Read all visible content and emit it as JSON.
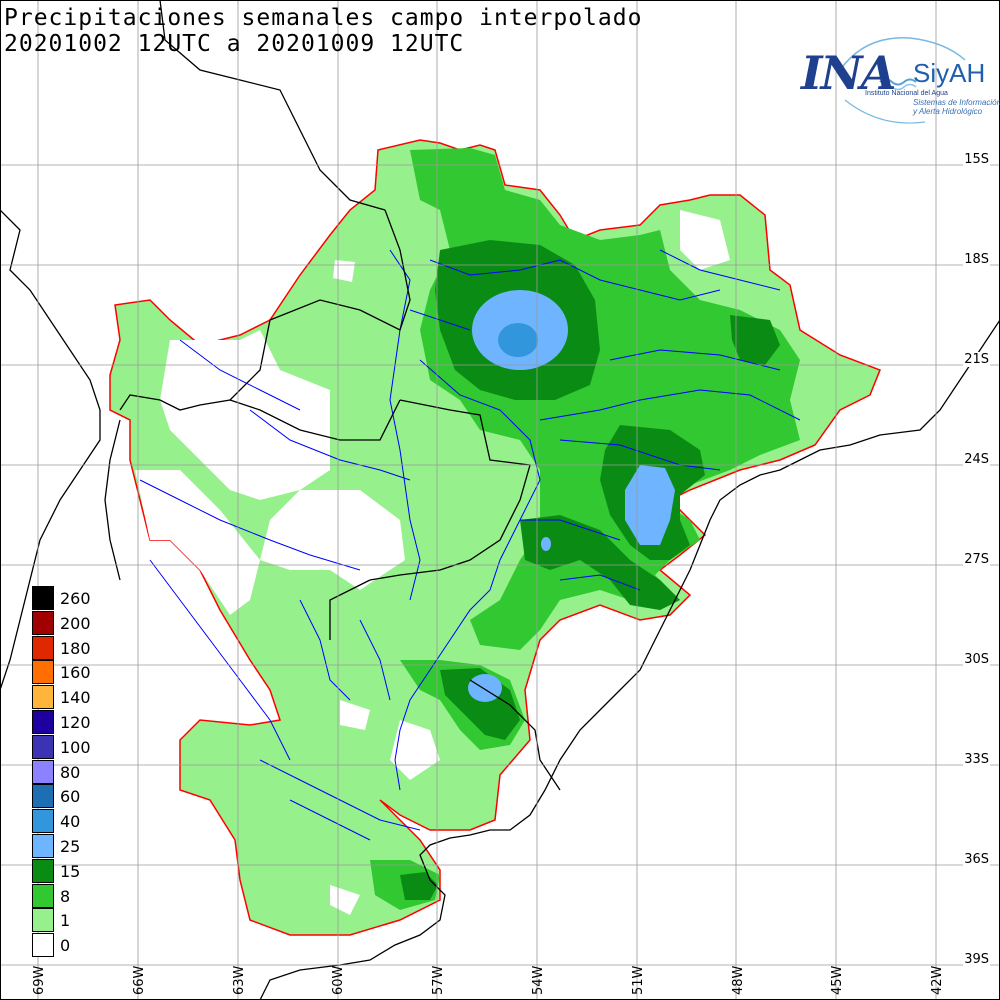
{
  "title": {
    "line1": "Precipitaciones semanales campo interpolado",
    "line2": "20201002 12UTC a 20201009 12UTC"
  },
  "logo": {
    "ina": "INA",
    "siyah": "SiyAH",
    "sub1": "Instituto Nacional del Agua",
    "sub2a": "Sistemas de Información",
    "sub2b": "y Alerta Hidrológico"
  },
  "latitudes": [
    "15S",
    "18S",
    "21S",
    "24S",
    "27S",
    "30S",
    "33S",
    "36S",
    "39S"
  ],
  "longitudes": [
    "69W",
    "66W",
    "63W",
    "60W",
    "57W",
    "54W",
    "51W",
    "48W",
    "45W",
    "42W"
  ],
  "legend": [
    {
      "label": "260",
      "color": "#000000"
    },
    {
      "label": "200",
      "color": "#a00000"
    },
    {
      "label": "180",
      "color": "#e02800"
    },
    {
      "label": "160",
      "color": "#ff6e00"
    },
    {
      "label": "140",
      "color": "#ffb43c"
    },
    {
      "label": "120",
      "color": "#1e00a0"
    },
    {
      "label": "100",
      "color": "#3c32b4"
    },
    {
      "label": "80",
      "color": "#8c82ff"
    },
    {
      "label": "60",
      "color": "#1e6eb4"
    },
    {
      "label": "40",
      "color": "#3296dc"
    },
    {
      "label": "25",
      "color": "#6eb4ff"
    },
    {
      "label": "15",
      "color": "#0a8c14"
    },
    {
      "label": "8",
      "color": "#32c832"
    },
    {
      "label": "1",
      "color": "#96f08c"
    },
    {
      "label": "0",
      "color": "#ffffff"
    }
  ]
}
